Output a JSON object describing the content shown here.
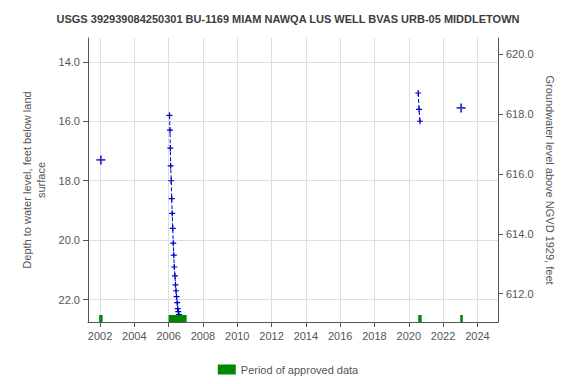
{
  "chart_data": {
    "type": "line",
    "title": "USGS 392939084250301 BU-1169 MIAM NAWQA LUS WELL BVAS URB-05 MIDDLETOWN",
    "ylabel": "Depth to water level, feet below land\nsurface",
    "y2label": "Groundwater level above NGVD 1929, feet",
    "xlim": [
      2001.3,
      2025.2
    ],
    "xticks": [
      2002,
      2004,
      2006,
      2008,
      2010,
      2012,
      2014,
      2016,
      2018,
      2020,
      2022,
      2024
    ],
    "ylim": [
      22.75,
      13.2
    ],
    "yticks": [
      {
        "value": 14.0,
        "label": "14.0"
      },
      {
        "value": 16.0,
        "label": "16.0"
      },
      {
        "value": 18.0,
        "label": "18.0"
      },
      {
        "value": 20.0,
        "label": "20.0"
      },
      {
        "value": 22.0,
        "label": "22.0"
      }
    ],
    "y2lim": [
      611.05,
      620.55
    ],
    "y2ticks": [
      {
        "value": 620.0,
        "label": "620.0"
      },
      {
        "value": 618.0,
        "label": "618.0"
      },
      {
        "value": 616.0,
        "label": "616.0"
      },
      {
        "value": 614.0,
        "label": "614.0"
      },
      {
        "value": 612.0,
        "label": "612.0"
      }
    ],
    "grid": true,
    "legend": "bottom",
    "series": [
      {
        "x": [
          2002.05
        ],
        "values": [
          17.3
        ],
        "color": "#0000cc",
        "marker": "plus",
        "line_style": "none"
      },
      {
        "x": [
          2006.05,
          2006.08,
          2006.1,
          2006.12,
          2006.15,
          2006.18,
          2006.21,
          2006.24,
          2006.27,
          2006.3,
          2006.33,
          2006.37,
          2006.4,
          2006.43,
          2006.46,
          2006.5,
          2006.53,
          2006.56,
          2006.6
        ],
        "values": [
          15.8,
          16.3,
          16.9,
          17.5,
          18.0,
          18.6,
          19.1,
          19.6,
          20.1,
          20.5,
          20.9,
          21.2,
          21.5,
          21.7,
          21.9,
          22.1,
          22.3,
          22.4,
          22.5
        ],
        "color": "#0000cc",
        "marker": "plus",
        "line_style": "dashed"
      },
      {
        "x": [
          2020.55,
          2020.6,
          2020.65
        ],
        "values": [
          15.05,
          15.6,
          16.0
        ],
        "color": "#0000cc",
        "marker": "plus",
        "line_style": "dashed"
      },
      {
        "x": [
          2023.05
        ],
        "values": [
          15.55
        ],
        "color": "#0000cc",
        "marker": "plus",
        "line_style": "none"
      },
      {
        "name": "Period of approved data",
        "type": "span",
        "color": "#008800",
        "x_start": [
          2001.95,
          2006.0,
          2020.55,
          2023.0
        ],
        "x_end": [
          2002.15,
          2007.05,
          2020.75,
          2023.15
        ]
      }
    ]
  }
}
